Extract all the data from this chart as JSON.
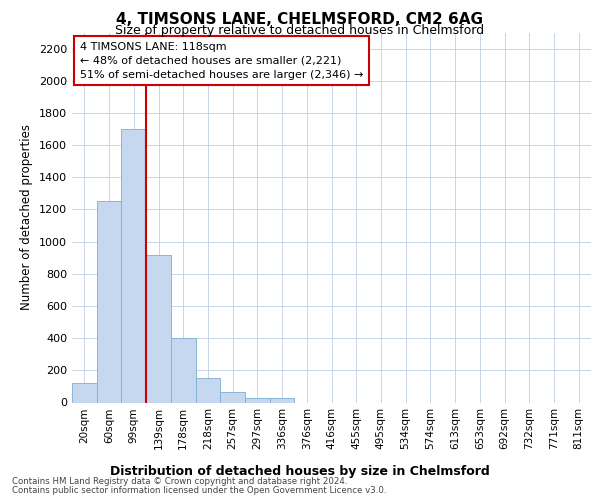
{
  "title": "4, TIMSONS LANE, CHELMSFORD, CM2 6AG",
  "subtitle": "Size of property relative to detached houses in Chelmsford",
  "xlabel": "Distribution of detached houses by size in Chelmsford",
  "ylabel": "Number of detached properties",
  "bar_labels": [
    "20sqm",
    "60sqm",
    "99sqm",
    "139sqm",
    "178sqm",
    "218sqm",
    "257sqm",
    "297sqm",
    "336sqm",
    "376sqm",
    "416sqm",
    "455sqm",
    "495sqm",
    "534sqm",
    "574sqm",
    "613sqm",
    "653sqm",
    "692sqm",
    "732sqm",
    "771sqm",
    "811sqm"
  ],
  "bar_values": [
    120,
    1250,
    1700,
    920,
    400,
    150,
    65,
    30,
    25,
    0,
    0,
    0,
    0,
    0,
    0,
    0,
    0,
    0,
    0,
    0,
    0
  ],
  "bar_color": "#c5d8f0",
  "bar_edge_color": "#7bafd4",
  "vline_color": "#cc0000",
  "vline_x_index": 2.5,
  "ylim": [
    0,
    2300
  ],
  "yticks": [
    0,
    200,
    400,
    600,
    800,
    1000,
    1200,
    1400,
    1600,
    1800,
    2000,
    2200
  ],
  "annotation_text": "4 TIMSONS LANE: 118sqm\n← 48% of detached houses are smaller (2,221)\n51% of semi-detached houses are larger (2,346) →",
  "annotation_box_color": "white",
  "annotation_box_edge": "#cc0000",
  "footer1": "Contains HM Land Registry data © Crown copyright and database right 2024.",
  "footer2": "Contains public sector information licensed under the Open Government Licence v3.0.",
  "grid_color": "#c8d4e8",
  "bg_color": "white"
}
